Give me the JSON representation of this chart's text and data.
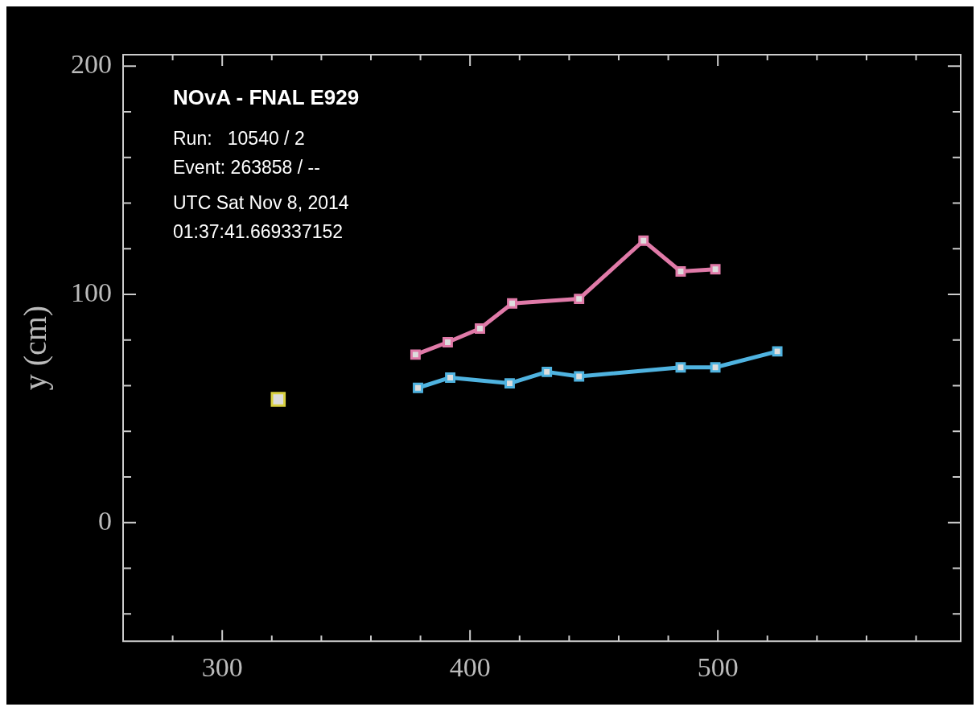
{
  "chart_data": {
    "type": "line",
    "ylabel": "y (cm)",
    "annotations": [
      "NOvA - FNAL E929",
      "Run:   10540 / 2",
      "Event: 263858 / --",
      "UTC Sat Nov 8, 2014",
      "01:37:41.669337152"
    ],
    "xlim": [
      260,
      598
    ],
    "xticks": [
      300,
      400,
      500
    ],
    "ylim": [
      -52,
      205
    ],
    "yticks": [
      0,
      100,
      200
    ],
    "grid": false,
    "legend": false,
    "marker": "square",
    "line_style": "solid",
    "series": [
      {
        "color": "#e07aa8",
        "x": [
          378,
          391,
          404,
          417,
          444,
          470,
          485,
          499
        ],
        "values": [
          73.6,
          79,
          85,
          96,
          98,
          123.5,
          110,
          111
        ]
      },
      {
        "color": "#4fb3e0",
        "x": [
          379,
          392,
          416,
          431,
          444,
          485,
          499,
          524
        ],
        "values": [
          59,
          63.5,
          61,
          66,
          64,
          68,
          68,
          75
        ]
      },
      {
        "type": "scatter",
        "color": "#d8d040",
        "x": [
          322.6
        ],
        "values": [
          54
        ]
      }
    ]
  }
}
